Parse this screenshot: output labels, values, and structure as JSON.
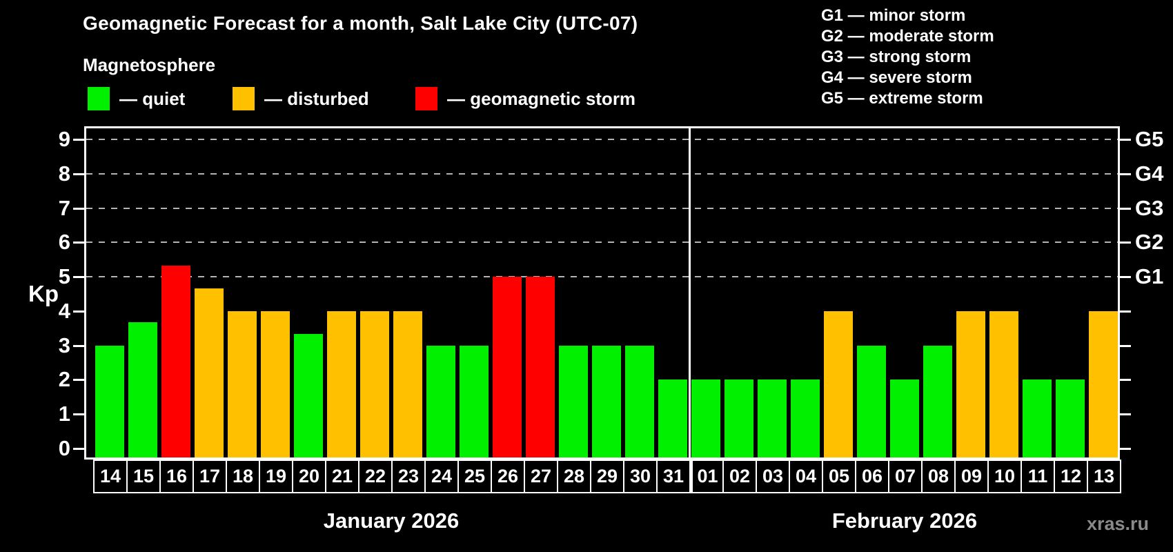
{
  "page": {
    "background": "#000000",
    "watermark": "xras.ru"
  },
  "header": {
    "title": "Geomagnetic Forecast for a month, Salt Lake City (UTC-07)",
    "subtitle": "Magnetosphere"
  },
  "legend": {
    "items": [
      {
        "key": "quiet",
        "label": "— quiet",
        "color": "#00f000"
      },
      {
        "key": "disturbed",
        "label": "— disturbed",
        "color": "#ffc000"
      },
      {
        "key": "storm",
        "label": "— geomagnetic storm",
        "color": "#ff0000"
      }
    ]
  },
  "g_scale_legend": {
    "items": [
      "G1 — minor storm",
      "G2 — moderate storm",
      "G3 — strong storm",
      "G4 — severe storm",
      "G5 — extreme storm"
    ]
  },
  "colors": {
    "quiet": "#00f000",
    "disturbed": "#ffc000",
    "storm": "#ff0000",
    "grid": "#b4b4b4",
    "axis": "#ffffff",
    "watermark": "#8a8a8a"
  },
  "chart_data": {
    "type": "bar",
    "title": "Geomagnetic Forecast for a month, Salt Lake City (UTC-07)",
    "ylabel": "Kp",
    "ylim": [
      0,
      9
    ],
    "yticks": [
      0,
      1,
      2,
      3,
      4,
      5,
      6,
      7,
      8,
      9
    ],
    "grid_kp": [
      5,
      6,
      7,
      8,
      9
    ],
    "grid_on": true,
    "right_axis": [
      {
        "label": "G1",
        "kp": 5
      },
      {
        "label": "G2",
        "kp": 6
      },
      {
        "label": "G3",
        "kp": 7
      },
      {
        "label": "G4",
        "kp": 8
      },
      {
        "label": "G5",
        "kp": 9
      }
    ],
    "months": [
      {
        "label": "January 2026",
        "days": [
          {
            "day": "14",
            "kp": 3.0,
            "level": "quiet"
          },
          {
            "day": "15",
            "kp": 3.67,
            "level": "quiet"
          },
          {
            "day": "16",
            "kp": 5.33,
            "level": "storm"
          },
          {
            "day": "17",
            "kp": 4.67,
            "level": "disturbed"
          },
          {
            "day": "18",
            "kp": 4.0,
            "level": "disturbed"
          },
          {
            "day": "19",
            "kp": 4.0,
            "level": "disturbed"
          },
          {
            "day": "20",
            "kp": 3.33,
            "level": "quiet"
          },
          {
            "day": "21",
            "kp": 4.0,
            "level": "disturbed"
          },
          {
            "day": "22",
            "kp": 4.0,
            "level": "disturbed"
          },
          {
            "day": "23",
            "kp": 4.0,
            "level": "disturbed"
          },
          {
            "day": "24",
            "kp": 3.0,
            "level": "quiet"
          },
          {
            "day": "25",
            "kp": 3.0,
            "level": "quiet"
          },
          {
            "day": "26",
            "kp": 5.0,
            "level": "storm"
          },
          {
            "day": "27",
            "kp": 5.0,
            "level": "storm"
          },
          {
            "day": "28",
            "kp": 3.0,
            "level": "quiet"
          },
          {
            "day": "29",
            "kp": 3.0,
            "level": "quiet"
          },
          {
            "day": "30",
            "kp": 3.0,
            "level": "quiet"
          },
          {
            "day": "31",
            "kp": 2.0,
            "level": "quiet"
          }
        ]
      },
      {
        "label": "February 2026",
        "days": [
          {
            "day": "01",
            "kp": 2.0,
            "level": "quiet"
          },
          {
            "day": "02",
            "kp": 2.0,
            "level": "quiet"
          },
          {
            "day": "03",
            "kp": 2.0,
            "level": "quiet"
          },
          {
            "day": "04",
            "kp": 2.0,
            "level": "quiet"
          },
          {
            "day": "05",
            "kp": 4.0,
            "level": "disturbed"
          },
          {
            "day": "06",
            "kp": 3.0,
            "level": "quiet"
          },
          {
            "day": "07",
            "kp": 2.0,
            "level": "quiet"
          },
          {
            "day": "08",
            "kp": 3.0,
            "level": "quiet"
          },
          {
            "day": "09",
            "kp": 4.0,
            "level": "disturbed"
          },
          {
            "day": "10",
            "kp": 4.0,
            "level": "disturbed"
          },
          {
            "day": "11",
            "kp": 2.0,
            "level": "quiet"
          },
          {
            "day": "12",
            "kp": 2.0,
            "level": "quiet"
          },
          {
            "day": "13",
            "kp": 4.0,
            "level": "disturbed"
          }
        ]
      }
    ]
  }
}
